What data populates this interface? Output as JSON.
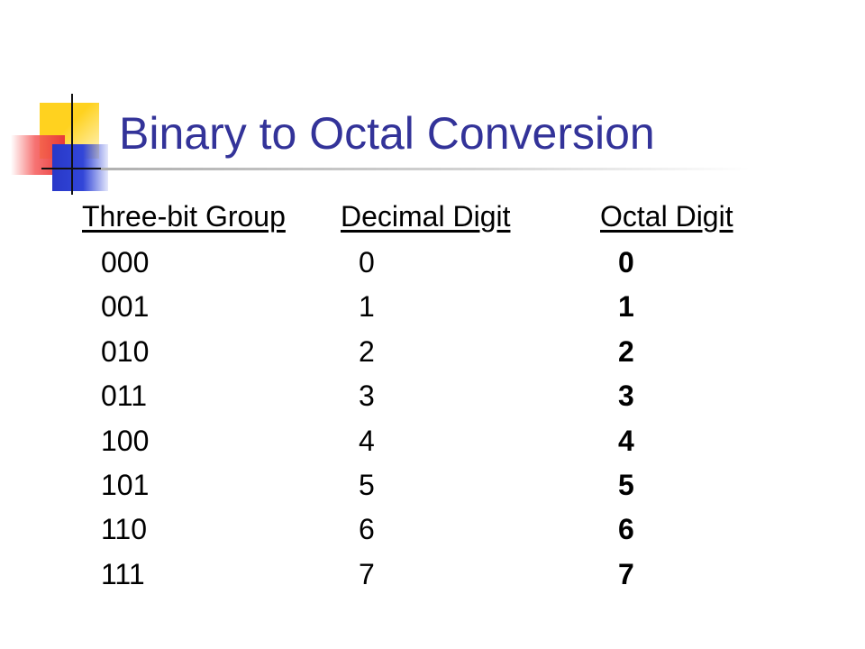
{
  "slide": {
    "title": "Binary to Octal Conversion"
  },
  "table": {
    "headers": [
      "Three-bit Group",
      "Decimal Digit",
      "Octal Digit"
    ],
    "rows": [
      [
        "000",
        "0",
        "0"
      ],
      [
        "001",
        "1",
        "1"
      ],
      [
        "010",
        "2",
        "2"
      ],
      [
        "011",
        "3",
        "3"
      ],
      [
        "100",
        "4",
        "4"
      ],
      [
        "101",
        "5",
        "5"
      ],
      [
        "110",
        "6",
        "6"
      ],
      [
        "111",
        "7",
        "7"
      ]
    ]
  },
  "colors": {
    "title": "#333399",
    "logo_yellow": "#ffd21f",
    "logo_red": "#e83a3a",
    "logo_blue": "#2838c8"
  }
}
